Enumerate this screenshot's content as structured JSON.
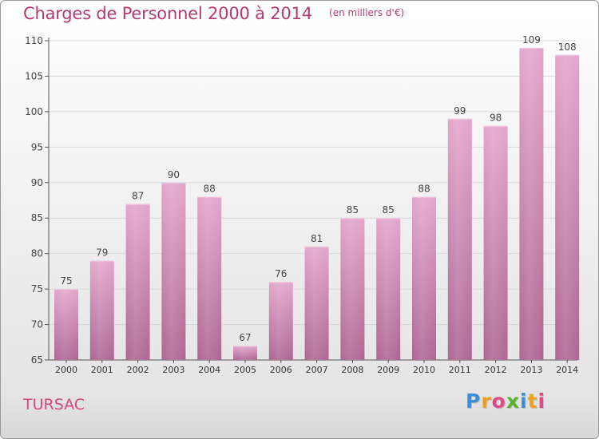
{
  "header": {
    "title": "Charges de Personnel 2000 à 2014",
    "subtitle": "(en milliers d'€)"
  },
  "footer": {
    "place": "TURSAC",
    "logo_text": "Proxiti",
    "logo_letters": [
      {
        "ch": "P",
        "color": "#3a8fd8"
      },
      {
        "ch": "r",
        "color": "#f0a020"
      },
      {
        "ch": "o",
        "color": "#e04a8a"
      },
      {
        "ch": "x",
        "color": "#5bb130"
      },
      {
        "ch": "i",
        "color": "#3a8fd8"
      },
      {
        "ch": "t",
        "color": "#f0a020"
      },
      {
        "ch": "i",
        "color": "#e04a8a"
      }
    ]
  },
  "colors": {
    "bar_top": "#e3a6cc",
    "bar_bottom": "#ad6693",
    "accent": "#b33a72",
    "axis": "#555555"
  },
  "chart_data": {
    "type": "bar",
    "title": "Charges de Personnel 2000 à 2014",
    "subtitle": "(en milliers d'€)",
    "categories": [
      "2000",
      "2001",
      "2002",
      "2003",
      "2004",
      "2005",
      "2006",
      "2007",
      "2008",
      "2009",
      "2010",
      "2011",
      "2012",
      "2013",
      "2014"
    ],
    "values": [
      75,
      79,
      87,
      90,
      88,
      67,
      76,
      81,
      85,
      85,
      88,
      99,
      98,
      109,
      108
    ],
    "yticks": [
      65,
      70,
      75,
      80,
      85,
      90,
      95,
      100,
      105,
      110
    ],
    "ylim": [
      65,
      110
    ],
    "grid": true,
    "legend": "none"
  }
}
